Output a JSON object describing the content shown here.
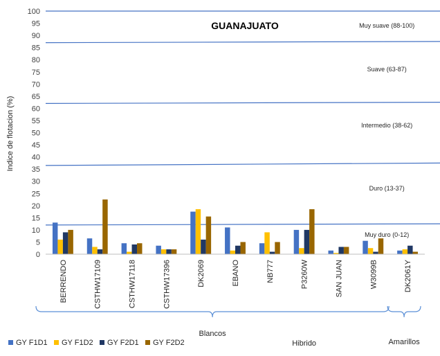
{
  "chart_data": {
    "type": "bar",
    "title": "GUANAJUATO",
    "ylabel": "Indice de flotacion (%)",
    "xlabel": "",
    "ylim": [
      0,
      100
    ],
    "yticks": [
      0,
      5,
      10,
      15,
      20,
      25,
      30,
      35,
      40,
      45,
      50,
      55,
      60,
      65,
      70,
      75,
      80,
      85,
      90,
      95,
      100
    ],
    "categories": [
      "BERRENDO",
      "CSTHW17109",
      "CSTHW17118",
      "CSTHW17396",
      "DK2069",
      "EBANO",
      "NB777",
      "P3260W",
      "SAN JUAN",
      "W3099B",
      "DK2061Y"
    ],
    "series": [
      {
        "name": "GY F1D1",
        "color": "#4472C4",
        "values": [
          13,
          6.5,
          4.5,
          3.5,
          17.5,
          11,
          4.5,
          10,
          1.5,
          5.5,
          1.5
        ]
      },
      {
        "name": "GY F1D2",
        "color": "#FFC000",
        "values": [
          6,
          3,
          1,
          2,
          18.5,
          1.5,
          9,
          2.5,
          0.5,
          2.5,
          2
        ]
      },
      {
        "name": "GY F2D1",
        "color": "#203864",
        "values": [
          9,
          2,
          4,
          2,
          6,
          3.5,
          1,
          10,
          3,
          1,
          3.5
        ]
      },
      {
        "name": "GY F2D2",
        "color": "#996600",
        "values": [
          10,
          22.5,
          4.5,
          2,
          15.5,
          5,
          5,
          18.5,
          3,
          6.5,
          1
        ]
      }
    ],
    "band_labels": [
      {
        "text": "Muy suave (88-100)",
        "y": 94
      },
      {
        "text": "Suave (63-87)",
        "y": 76
      },
      {
        "text": "Intermedio (38-62)",
        "y": 53
      },
      {
        "text": "Duro (13-37)",
        "y": 27
      },
      {
        "text": "Muy duro (0-12)",
        "y": 8
      }
    ],
    "band_lines": [
      {
        "y_left": 100,
        "y_right": 100
      },
      {
        "y_left": 87,
        "y_right": 87.5
      },
      {
        "y_left": 62,
        "y_right": 62.5
      },
      {
        "y_left": 36.5,
        "y_right": 37.5
      },
      {
        "y_left": 12,
        "y_right": 12.5
      }
    ],
    "groups": [
      {
        "label": "Blancos",
        "from": 0,
        "to": 9
      },
      {
        "label": "Hibrido",
        "from": 7,
        "to": 7
      },
      {
        "label": "Amarillos",
        "from": 10,
        "to": 10
      }
    ],
    "legend_position": "bottom-left",
    "grid": false
  }
}
